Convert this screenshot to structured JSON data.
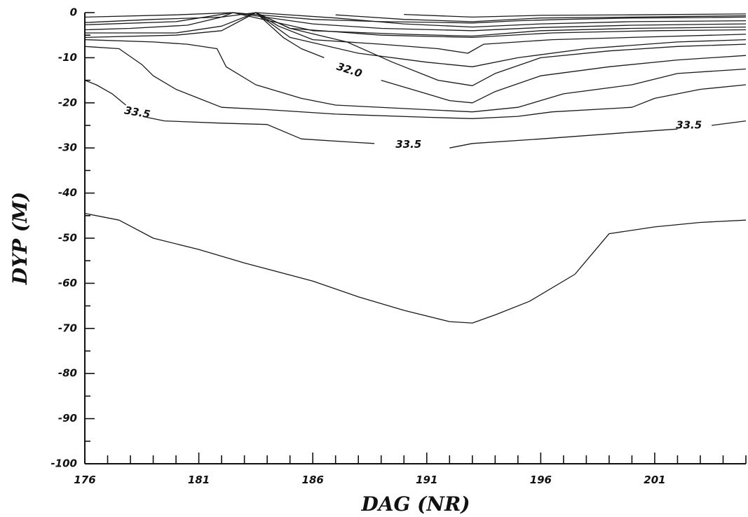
{
  "chart_data": {
    "type": "contour",
    "title": "",
    "xlabel": "DAG (NR)",
    "ylabel": "DYP (M)",
    "xlim": [
      176,
      205
    ],
    "ylim": [
      -100,
      0
    ],
    "x_tick_labels": [
      "176",
      "181",
      "186",
      "191",
      "196",
      "201"
    ],
    "y_tick_labels": [
      "0",
      "-10",
      "-20",
      "-30",
      "-40",
      "-50",
      "-60",
      "-70",
      "-80",
      "-90",
      "-100"
    ],
    "grid": false,
    "contour_labels": [
      {
        "text": "32.0",
        "x": 187.6,
        "y": -12.8
      },
      {
        "text": "33.5",
        "x": 178.3,
        "y": -22.2
      },
      {
        "text": "33.5",
        "x": 190.2,
        "y": -29.3
      },
      {
        "text": "33.5",
        "x": 202.5,
        "y": -25.0
      }
    ],
    "contours": [
      {
        "name": "c1",
        "points": [
          [
            176,
            -1
          ],
          [
            180,
            -0.5
          ],
          [
            182.5,
            0
          ],
          [
            186,
            -1.5
          ],
          [
            189,
            -2
          ],
          [
            192,
            -2.2
          ],
          [
            193,
            -2.3
          ],
          [
            195,
            -1.8
          ],
          [
            197,
            -1.5
          ],
          [
            200,
            -1.2
          ],
          [
            203,
            -1.1
          ],
          [
            205,
            -1
          ]
        ]
      },
      {
        "name": "c2",
        "points": [
          [
            176,
            -2.2
          ],
          [
            179,
            -1.5
          ],
          [
            182,
            -1
          ],
          [
            182.5,
            0
          ],
          [
            186,
            -2.5
          ],
          [
            189,
            -3.5
          ],
          [
            193,
            -4
          ],
          [
            196,
            -3.3
          ],
          [
            200,
            -2.8
          ],
          [
            205,
            -2.5
          ]
        ]
      },
      {
        "name": "c3",
        "points": [
          [
            176,
            -3.8
          ],
          [
            178,
            -3.5
          ],
          [
            180.5,
            -2.8
          ],
          [
            182,
            -1
          ],
          [
            183.5,
            0
          ],
          [
            185,
            -3.5
          ],
          [
            189,
            -5
          ],
          [
            193,
            -5.5
          ],
          [
            196.5,
            -4.5
          ],
          [
            201,
            -4
          ],
          [
            205,
            -3.8
          ]
        ]
      },
      {
        "name": "c4",
        "points": [
          [
            176,
            -5.5
          ],
          [
            180,
            -5
          ],
          [
            182,
            -4
          ],
          [
            183.5,
            0
          ],
          [
            184.5,
            -3
          ],
          [
            186,
            -6
          ],
          [
            189,
            -7
          ],
          [
            191.5,
            -8
          ],
          [
            192.8,
            -9
          ],
          [
            193.5,
            -7
          ],
          [
            196.5,
            -6
          ],
          [
            200,
            -5.5
          ],
          [
            205,
            -4.8
          ]
        ]
      },
      {
        "name": "c5",
        "points": [
          [
            176,
            -7.5
          ],
          [
            177.5,
            -8
          ],
          [
            178.5,
            -11.5
          ],
          [
            179,
            -14
          ],
          [
            180,
            -17
          ],
          [
            181,
            -19
          ],
          [
            182,
            -21
          ],
          [
            184,
            -21.5
          ],
          [
            187,
            -22.5
          ],
          [
            191,
            -23.2
          ],
          [
            193,
            -23.5
          ],
          [
            195,
            -23
          ],
          [
            196.5,
            -22
          ],
          [
            200,
            -21
          ],
          [
            201,
            -19
          ],
          [
            203,
            -17
          ],
          [
            205,
            -16
          ]
        ]
      },
      {
        "name": "c6",
        "points": [
          [
            176,
            -6
          ],
          [
            179,
            -6.5
          ],
          [
            180.5,
            -7
          ],
          [
            181.8,
            -8
          ],
          [
            182.2,
            -12
          ],
          [
            183.5,
            -16
          ],
          [
            185.5,
            -19
          ],
          [
            187,
            -20.5
          ],
          [
            191,
            -21.5
          ],
          [
            193,
            -22
          ],
          [
            195,
            -21
          ],
          [
            197,
            -18
          ],
          [
            200,
            -16
          ],
          [
            202,
            -13.5
          ],
          [
            205,
            -12.5
          ]
        ]
      },
      {
        "name": "c7",
        "points": [
          [
            183.5,
            0
          ],
          [
            184.7,
            -5.5
          ],
          [
            185.5,
            -8
          ],
          [
            186.5,
            -10
          ]
        ]
      },
      {
        "name": "c8",
        "points": [
          [
            189,
            -15
          ],
          [
            191,
            -18
          ],
          [
            192,
            -19.5
          ],
          [
            193,
            -20
          ],
          [
            194,
            -17.5
          ],
          [
            196,
            -14
          ],
          [
            199,
            -12
          ],
          [
            202,
            -10.5
          ],
          [
            205,
            -9.5
          ]
        ]
      },
      {
        "name": "c9",
        "points": [
          [
            183.5,
            0
          ],
          [
            185,
            -3.5
          ],
          [
            187.5,
            -6.5
          ],
          [
            189.5,
            -11
          ],
          [
            191.5,
            -15
          ],
          [
            193,
            -16.2
          ],
          [
            194,
            -13.5
          ],
          [
            196,
            -10
          ],
          [
            199,
            -8.5
          ],
          [
            202,
            -7.5
          ],
          [
            205,
            -7
          ]
        ]
      },
      {
        "name": "c10",
        "points": [
          [
            176,
            -15
          ],
          [
            176.5,
            -16
          ],
          [
            177.2,
            -18
          ],
          [
            177.8,
            -20.5
          ]
        ]
      },
      {
        "name": "c11",
        "points": [
          [
            178.7,
            -23.2
          ],
          [
            179.5,
            -24
          ],
          [
            182,
            -24.5
          ],
          [
            184,
            -24.8
          ],
          [
            185.5,
            -28
          ],
          [
            188,
            -28.8
          ],
          [
            188.7,
            -29
          ]
        ]
      },
      {
        "name": "c12",
        "points": [
          [
            192,
            -30
          ],
          [
            193,
            -29
          ],
          [
            196,
            -28
          ],
          [
            200,
            -26.5
          ],
          [
            202,
            -25.8
          ]
        ]
      },
      {
        "name": "c13",
        "points": [
          [
            203.5,
            -25
          ],
          [
            205,
            -24
          ]
        ]
      },
      {
        "name": "c14",
        "points": [
          [
            176,
            -44.5
          ],
          [
            177.5,
            -46
          ],
          [
            179,
            -50
          ],
          [
            181,
            -52.5
          ],
          [
            183,
            -55.5
          ],
          [
            186,
            -59.5
          ],
          [
            188,
            -63
          ],
          [
            190,
            -66
          ],
          [
            192,
            -68.5
          ],
          [
            193,
            -68.8
          ],
          [
            194,
            -67
          ],
          [
            195.5,
            -64
          ],
          [
            197.5,
            -58
          ],
          [
            199,
            -49
          ],
          [
            201,
            -47.5
          ],
          [
            203,
            -46.5
          ],
          [
            205,
            -46
          ]
        ]
      },
      {
        "name": "c15",
        "points": [
          [
            176,
            -4.5
          ],
          [
            180,
            -4.5
          ],
          [
            182,
            -3
          ],
          [
            183.5,
            0
          ],
          [
            185,
            -5.5
          ],
          [
            188,
            -9
          ],
          [
            191,
            -11
          ],
          [
            193,
            -12
          ],
          [
            195,
            -10
          ],
          [
            198,
            -8
          ],
          [
            202,
            -6.5
          ],
          [
            205,
            -6
          ]
        ]
      },
      {
        "name": "c16",
        "points": [
          [
            176,
            -2.7
          ],
          [
            180,
            -2
          ],
          [
            182.5,
            0
          ],
          [
            186,
            -4
          ],
          [
            190,
            -4.8
          ],
          [
            193,
            -5.2
          ],
          [
            196,
            -4
          ],
          [
            200,
            -3.5
          ],
          [
            205,
            -3.2
          ]
        ]
      },
      {
        "name": "c17",
        "points": [
          [
            183.5,
            0
          ],
          [
            187,
            -1.2
          ],
          [
            190,
            -2.5
          ],
          [
            193,
            -3.2
          ],
          [
            196,
            -2.5
          ],
          [
            200,
            -2
          ],
          [
            205,
            -1.8
          ]
        ]
      },
      {
        "name": "c18",
        "points": [
          [
            187,
            -0.5
          ],
          [
            190,
            -1.5
          ],
          [
            193,
            -2
          ],
          [
            196,
            -1.2
          ],
          [
            200,
            -1
          ],
          [
            205,
            -0.7
          ]
        ]
      },
      {
        "name": "c19",
        "points": [
          [
            190,
            -0.4
          ],
          [
            193,
            -1
          ],
          [
            196,
            -0.6
          ],
          [
            200,
            -0.5
          ],
          [
            205,
            -0.3
          ]
        ]
      }
    ]
  }
}
